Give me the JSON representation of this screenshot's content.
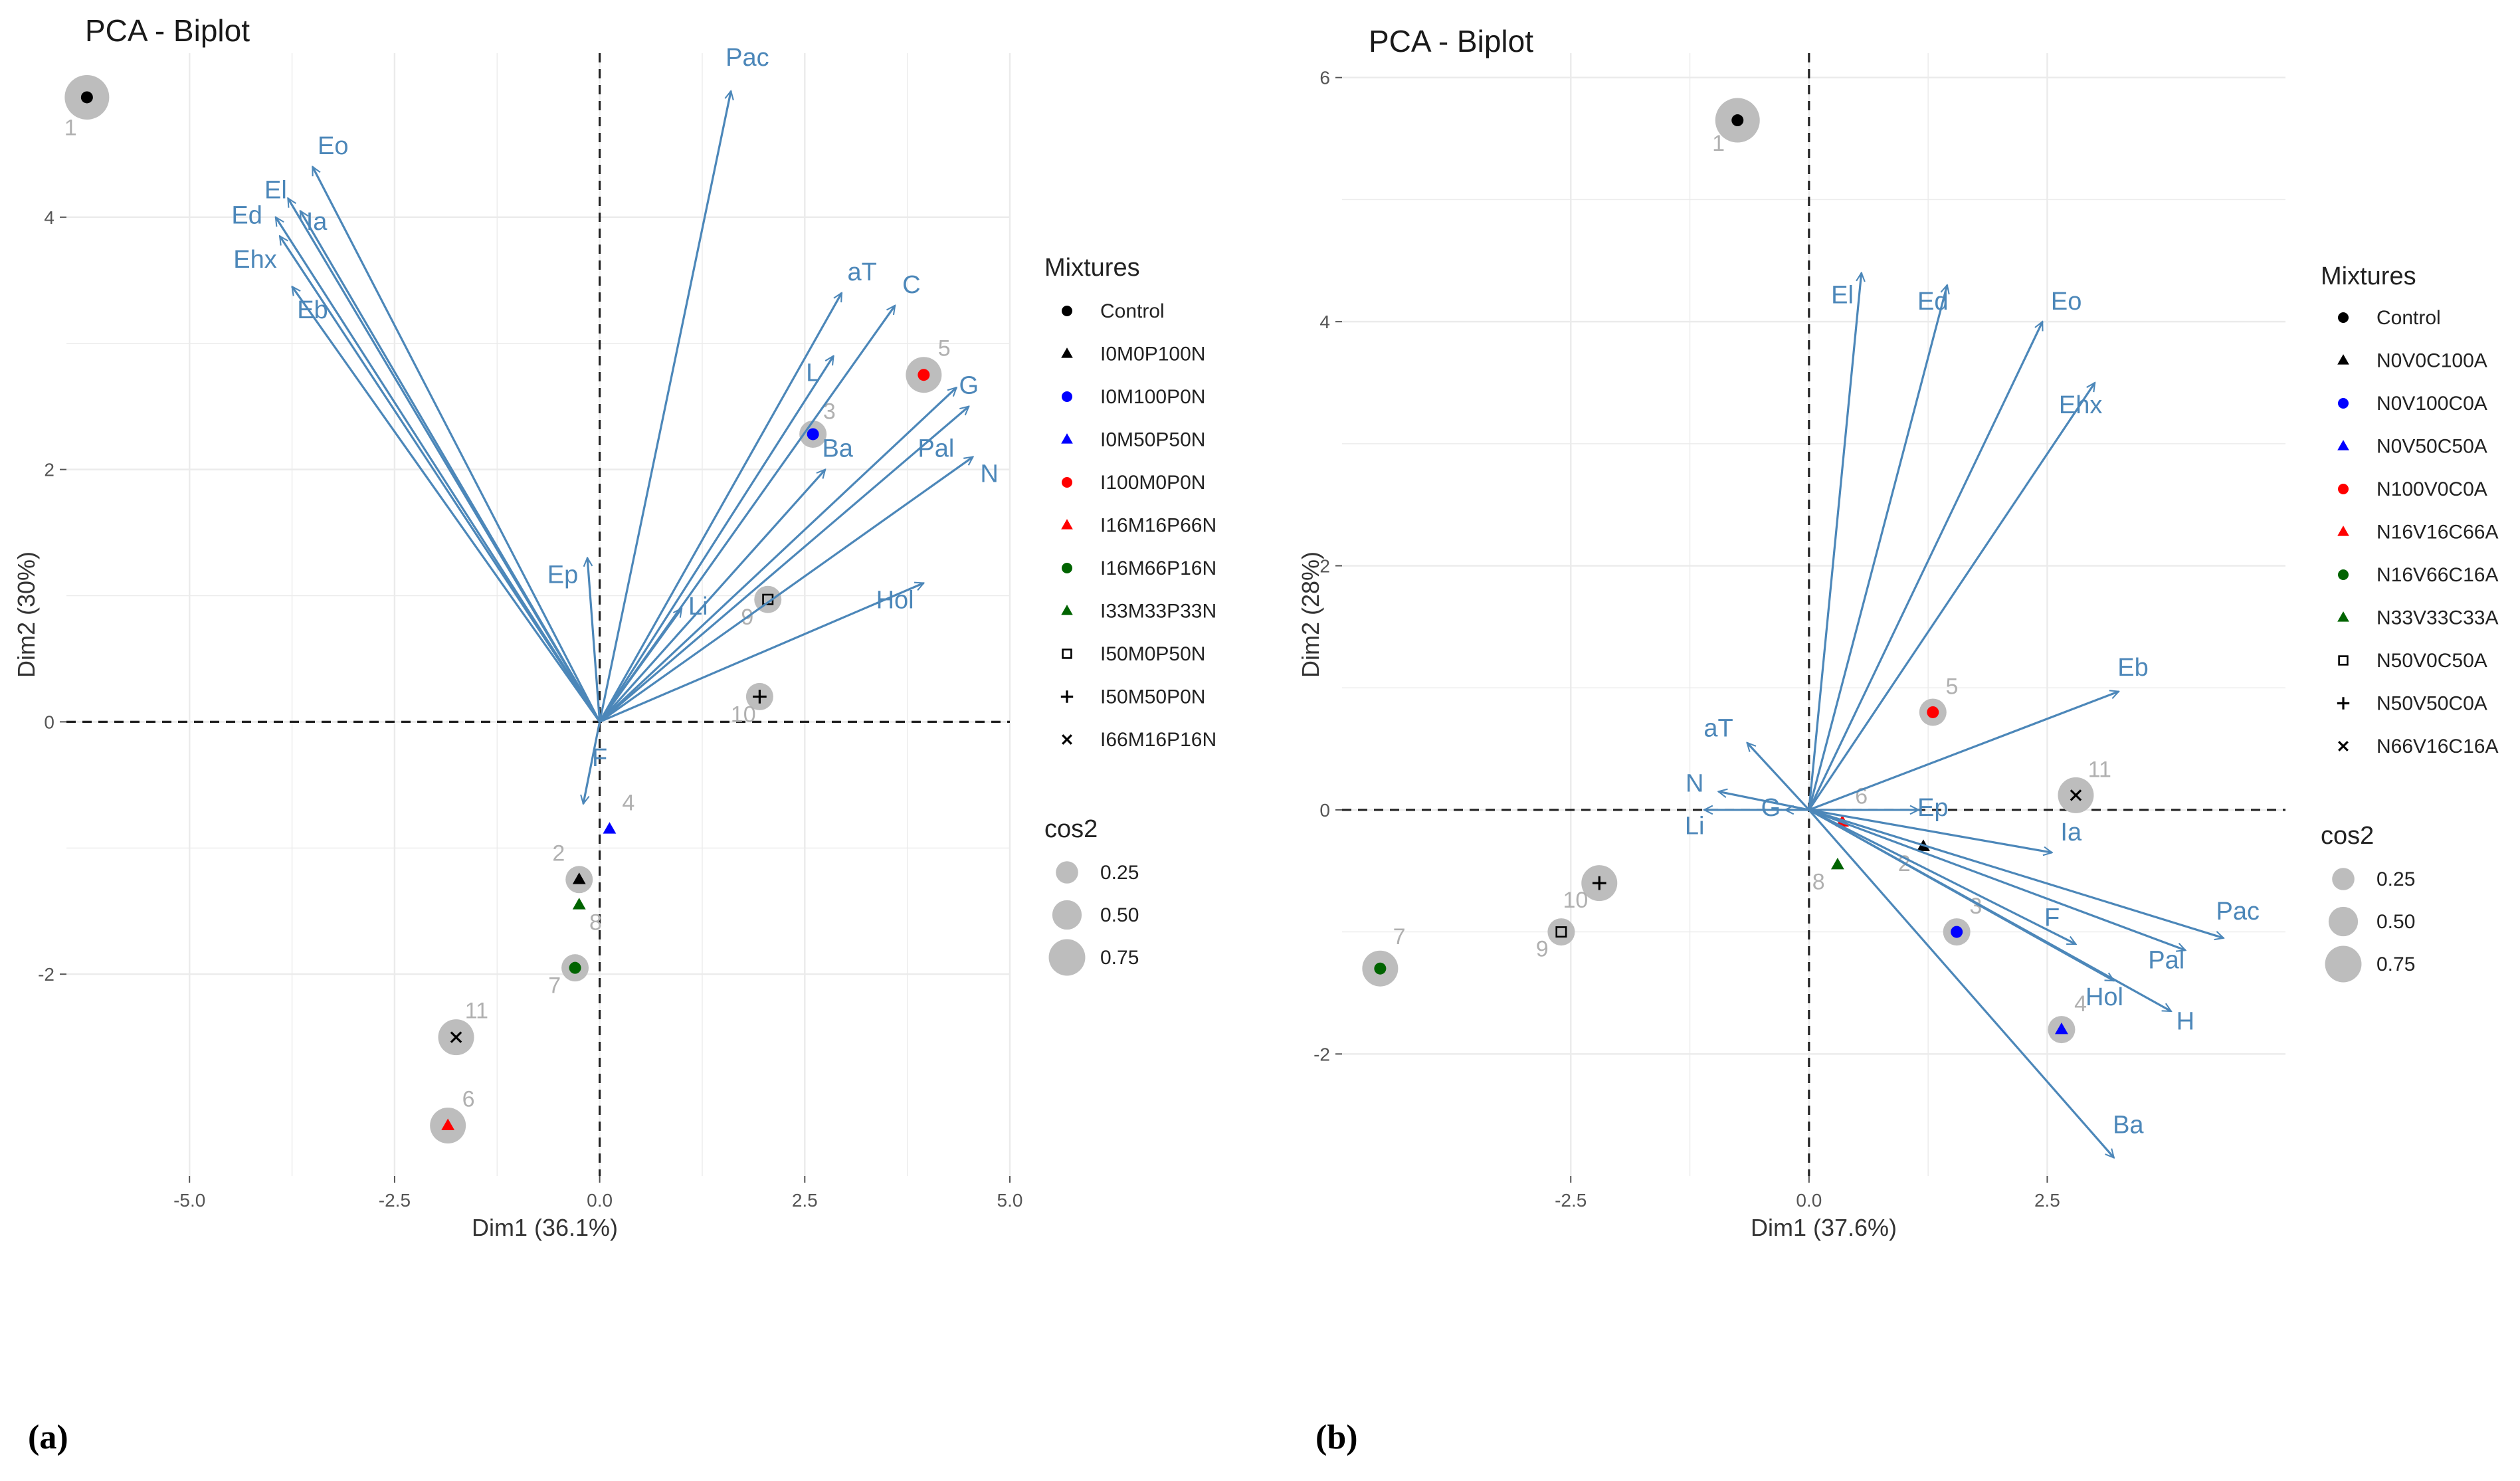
{
  "colors": {
    "arrow": "#4c87b9",
    "grid": "#ebebeb",
    "cos2_circle": "#bdbdbd",
    "ind_label": "#b0b0b0",
    "black": "#000000",
    "blue": "#0000ff",
    "red": "#ff0000",
    "green": "#006400"
  },
  "chart_data": [
    {
      "type": "scatter",
      "panel_label": "(a)",
      "title": "PCA - Biplot",
      "xlabel": "Dim1 (36.1%)",
      "ylabel": "Dim2 (30%)",
      "xlim": [
        -6.5,
        5.0
      ],
      "ylim": [
        -3.6,
        5.3
      ],
      "xticks": [
        -5.0,
        -2.5,
        0.0,
        2.5,
        5.0
      ],
      "xtick_labels": [
        "-5.0",
        "-2.5",
        "0.0",
        "2.5",
        "5.0"
      ],
      "yticks": [
        -2,
        0,
        2,
        4
      ],
      "ytick_labels": [
        "-2",
        "0",
        "2",
        "4"
      ],
      "grid": true,
      "legend_placement": "right",
      "legend_title": "Mixtures",
      "legend": [
        {
          "label": "Control",
          "shape": "circle",
          "color": "#000000"
        },
        {
          "label": "I0M0P100N",
          "shape": "triangle",
          "color": "#000000"
        },
        {
          "label": "I0M100P0N",
          "shape": "circle",
          "color": "#0000ff"
        },
        {
          "label": "I0M50P50N",
          "shape": "triangle",
          "color": "#0000ff"
        },
        {
          "label": "I100M0P0N",
          "shape": "circle",
          "color": "#ff0000"
        },
        {
          "label": "I16M16P66N",
          "shape": "triangle",
          "color": "#ff0000"
        },
        {
          "label": "I16M66P16N",
          "shape": "circle",
          "color": "#006400"
        },
        {
          "label": "I33M33P33N",
          "shape": "triangle",
          "color": "#006400"
        },
        {
          "label": "I50M0P50N",
          "shape": "square-open",
          "color": "#000000"
        },
        {
          "label": "I50M50P0N",
          "shape": "plus",
          "color": "#000000"
        },
        {
          "label": "I66M16P16N",
          "shape": "cross",
          "color": "#000000"
        }
      ],
      "size_legend_title": "cos2",
      "size_legend": [
        {
          "label": "0.25",
          "value": 0.25
        },
        {
          "label": "0.50",
          "value": 0.5
        },
        {
          "label": "0.75",
          "value": 0.75
        }
      ],
      "variables": [
        {
          "name": "Pac",
          "x": 1.6,
          "y": 5.0,
          "lx": 1.8,
          "ly": 5.2
        },
        {
          "name": "Eo",
          "x": -3.5,
          "y": 4.4,
          "lx": -3.25,
          "ly": 4.5
        },
        {
          "name": "El",
          "x": -3.8,
          "y": 4.15,
          "lx": -3.95,
          "ly": 4.15
        },
        {
          "name": "Ia",
          "x": -3.65,
          "y": 4.05,
          "lx": -3.45,
          "ly": 3.9
        },
        {
          "name": "Ed",
          "x": -3.95,
          "y": 4.0,
          "lx": -4.3,
          "ly": 3.95
        },
        {
          "name": "Ehx",
          "x": -3.9,
          "y": 3.85,
          "lx": -4.2,
          "ly": 3.6
        },
        {
          "name": "Eb",
          "x": -3.75,
          "y": 3.45,
          "lx": -3.5,
          "ly": 3.2
        },
        {
          "name": "aT",
          "x": 2.95,
          "y": 3.4,
          "lx": 3.2,
          "ly": 3.5
        },
        {
          "name": "C",
          "x": 3.6,
          "y": 3.3,
          "lx": 3.8,
          "ly": 3.4
        },
        {
          "name": "L",
          "x": 2.85,
          "y": 2.9,
          "lx": 2.6,
          "ly": 2.7
        },
        {
          "name": "Ba",
          "x": 2.75,
          "y": 2.0,
          "lx": 2.9,
          "ly": 2.1
        },
        {
          "name": "G",
          "x": 4.35,
          "y": 2.65,
          "lx": 4.5,
          "ly": 2.6
        },
        {
          "name": "Pal",
          "x": 4.5,
          "y": 2.5,
          "lx": 4.1,
          "ly": 2.1
        },
        {
          "name": "N",
          "x": 4.55,
          "y": 2.1,
          "lx": 4.75,
          "ly": 1.9
        },
        {
          "name": "Hol",
          "x": 3.95,
          "y": 1.1,
          "lx": 3.6,
          "ly": 0.9
        },
        {
          "name": "Ep",
          "x": -0.15,
          "y": 1.3,
          "lx": -0.45,
          "ly": 1.1
        },
        {
          "name": "Li",
          "x": 1.0,
          "y": 0.9,
          "lx": 1.2,
          "ly": 0.85
        },
        {
          "name": "F",
          "x": -0.2,
          "y": -0.65,
          "lx": 0.0,
          "ly": -0.35
        }
      ],
      "individuals": [
        {
          "label": "1",
          "x": -6.25,
          "y": 4.95,
          "cos2": 0.75,
          "color": "#000000",
          "shape": "circle",
          "lx": -6.45,
          "ly": 4.65
        },
        {
          "label": "2",
          "x": -0.25,
          "y": -1.25,
          "cos2": 0.25,
          "color": "#000000",
          "shape": "triangle",
          "lx": -0.5,
          "ly": -1.1
        },
        {
          "label": "3",
          "x": 2.6,
          "y": 2.28,
          "cos2": 0.25,
          "color": "#0000ff",
          "shape": "circle",
          "lx": 2.8,
          "ly": 2.4
        },
        {
          "label": "4",
          "x": 0.12,
          "y": -0.85,
          "cos2": 0.0,
          "color": "#0000ff",
          "shape": "triangle",
          "lx": 0.35,
          "ly": -0.7
        },
        {
          "label": "5",
          "x": 3.95,
          "y": 2.75,
          "cos2": 0.5,
          "color": "#ff0000",
          "shape": "circle",
          "lx": 4.2,
          "ly": 2.9
        },
        {
          "label": "6",
          "x": -1.85,
          "y": -3.2,
          "cos2": 0.5,
          "color": "#ff0000",
          "shape": "triangle",
          "lx": -1.6,
          "ly": -3.05
        },
        {
          "label": "7",
          "x": -0.3,
          "y": -1.95,
          "cos2": 0.25,
          "color": "#006400",
          "shape": "circle",
          "lx": -0.55,
          "ly": -2.15
        },
        {
          "label": "8",
          "x": -0.25,
          "y": -1.45,
          "cos2": 0.0,
          "color": "#006400",
          "shape": "triangle",
          "lx": -0.05,
          "ly": -1.65
        },
        {
          "label": "9",
          "x": 2.05,
          "y": 0.97,
          "cos2": 0.25,
          "color": "#000000",
          "shape": "square-open",
          "lx": 1.8,
          "ly": 0.77
        },
        {
          "label": "10",
          "x": 1.95,
          "y": 0.2,
          "cos2": 0.25,
          "color": "#000000",
          "shape": "plus",
          "lx": 1.75,
          "ly": 0.0
        },
        {
          "label": "11",
          "x": -1.75,
          "y": -2.5,
          "cos2": 0.5,
          "color": "#000000",
          "shape": "cross",
          "lx": -1.5,
          "ly": -2.35
        }
      ]
    },
    {
      "type": "scatter",
      "panel_label": "(b)",
      "title": "PCA - Biplot",
      "xlabel": "Dim1 (37.6%)",
      "ylabel": "Dim2 (28%)",
      "xlim": [
        -4.9,
        5.0
      ],
      "ylim": [
        -3.0,
        6.2
      ],
      "xticks": [
        -2.5,
        0.0,
        2.5
      ],
      "xtick_labels": [
        "-2.5",
        "0.0",
        "2.5"
      ],
      "yticks": [
        -2,
        0,
        2,
        4,
        6
      ],
      "ytick_labels": [
        "-2",
        "0",
        "2",
        "4",
        "6"
      ],
      "grid": true,
      "legend_placement": "right",
      "legend_title": "Mixtures",
      "legend": [
        {
          "label": "Control",
          "shape": "circle",
          "color": "#000000"
        },
        {
          "label": "N0V0C100A",
          "shape": "triangle",
          "color": "#000000"
        },
        {
          "label": "N0V100C0A",
          "shape": "circle",
          "color": "#0000ff"
        },
        {
          "label": "N0V50C50A",
          "shape": "triangle",
          "color": "#0000ff"
        },
        {
          "label": "N100V0C0A",
          "shape": "circle",
          "color": "#ff0000"
        },
        {
          "label": "N16V16C66A",
          "shape": "triangle",
          "color": "#ff0000"
        },
        {
          "label": "N16V66C16A",
          "shape": "circle",
          "color": "#006400"
        },
        {
          "label": "N33V33C33A",
          "shape": "triangle",
          "color": "#006400"
        },
        {
          "label": "N50V0C50A",
          "shape": "square-open",
          "color": "#000000"
        },
        {
          "label": "N50V50C0A",
          "shape": "plus",
          "color": "#000000"
        },
        {
          "label": "N66V16C16A",
          "shape": "cross",
          "color": "#000000"
        }
      ],
      "size_legend_title": "cos2",
      "size_legend": [
        {
          "label": "0.25",
          "value": 0.25
        },
        {
          "label": "0.50",
          "value": 0.5
        },
        {
          "label": "0.75",
          "value": 0.75
        }
      ],
      "variables": [
        {
          "name": "El",
          "x": 0.55,
          "y": 4.4,
          "lx": 0.35,
          "ly": 4.15
        },
        {
          "name": "Ed",
          "x": 1.45,
          "y": 4.3,
          "lx": 1.3,
          "ly": 4.1
        },
        {
          "name": "Eo",
          "x": 2.45,
          "y": 4.0,
          "lx": 2.7,
          "ly": 4.1
        },
        {
          "name": "Ehx",
          "x": 3.0,
          "y": 3.5,
          "lx": 2.85,
          "ly": 3.25
        },
        {
          "name": "Eb",
          "x": 3.25,
          "y": 0.97,
          "lx": 3.4,
          "ly": 1.1
        },
        {
          "name": "Ep",
          "x": 1.15,
          "y": 0.0,
          "lx": 1.3,
          "ly": -0.05
        },
        {
          "name": "Ia",
          "x": 2.55,
          "y": -0.35,
          "lx": 2.75,
          "ly": -0.25
        },
        {
          "name": "F",
          "x": 2.8,
          "y": -1.1,
          "lx": 2.55,
          "ly": -0.95
        },
        {
          "name": "Pac",
          "x": 4.35,
          "y": -1.05,
          "lx": 4.5,
          "ly": -0.9
        },
        {
          "name": "Pal",
          "x": 3.95,
          "y": -1.15,
          "lx": 3.75,
          "ly": -1.3
        },
        {
          "name": "Hol",
          "x": 3.2,
          "y": -1.4,
          "lx": 3.1,
          "ly": -1.6
        },
        {
          "name": "H",
          "x": 3.8,
          "y": -1.65,
          "lx": 3.95,
          "ly": -1.8
        },
        {
          "name": "Ba",
          "x": 3.2,
          "y": -2.85,
          "lx": 3.35,
          "ly": -2.65
        },
        {
          "name": "aT",
          "x": -0.65,
          "y": 0.55,
          "lx": -0.95,
          "ly": 0.6
        },
        {
          "name": "N",
          "x": -0.95,
          "y": 0.15,
          "lx": -1.2,
          "ly": 0.15
        },
        {
          "name": "Li",
          "x": -1.1,
          "y": 0.0,
          "lx": -1.2,
          "ly": -0.2
        },
        {
          "name": "G",
          "x": -0.25,
          "y": 0.0,
          "lx": -0.4,
          "ly": -0.05
        }
      ],
      "individuals": [
        {
          "label": "1",
          "x": -0.75,
          "y": 5.65,
          "cos2": 0.75,
          "color": "#000000",
          "shape": "circle",
          "lx": -0.95,
          "ly": 5.4
        },
        {
          "label": "2",
          "x": 1.2,
          "y": -0.3,
          "cos2": 0.0,
          "color": "#000000",
          "shape": "triangle",
          "lx": 1.0,
          "ly": -0.5
        },
        {
          "label": "3",
          "x": 1.55,
          "y": -1.0,
          "cos2": 0.25,
          "color": "#0000ff",
          "shape": "circle",
          "lx": 1.75,
          "ly": -0.85
        },
        {
          "label": "4",
          "x": 2.65,
          "y": -1.8,
          "cos2": 0.25,
          "color": "#0000ff",
          "shape": "triangle",
          "lx": 2.85,
          "ly": -1.65
        },
        {
          "label": "5",
          "x": 1.3,
          "y": 0.8,
          "cos2": 0.25,
          "color": "#ff0000",
          "shape": "circle",
          "lx": 1.5,
          "ly": 0.95
        },
        {
          "label": "6",
          "x": 0.35,
          "y": -0.1,
          "cos2": 0.0,
          "color": "#ff0000",
          "shape": "triangle",
          "lx": 0.55,
          "ly": 0.05
        },
        {
          "label": "7",
          "x": -4.5,
          "y": -1.3,
          "cos2": 0.5,
          "color": "#006400",
          "shape": "circle",
          "lx": -4.3,
          "ly": -1.1
        },
        {
          "label": "8",
          "x": 0.3,
          "y": -0.45,
          "cos2": 0.0,
          "color": "#006400",
          "shape": "triangle",
          "lx": 0.1,
          "ly": -0.65
        },
        {
          "label": "9",
          "x": -2.6,
          "y": -1.0,
          "cos2": 0.25,
          "color": "#000000",
          "shape": "square-open",
          "lx": -2.8,
          "ly": -1.2
        },
        {
          "label": "10",
          "x": -2.2,
          "y": -0.6,
          "cos2": 0.5,
          "color": "#000000",
          "shape": "plus",
          "lx": -2.45,
          "ly": -0.8
        },
        {
          "label": "11",
          "x": 2.8,
          "y": 0.12,
          "cos2": 0.5,
          "color": "#000000",
          "shape": "cross",
          "lx": 3.05,
          "ly": 0.27
        }
      ]
    }
  ]
}
